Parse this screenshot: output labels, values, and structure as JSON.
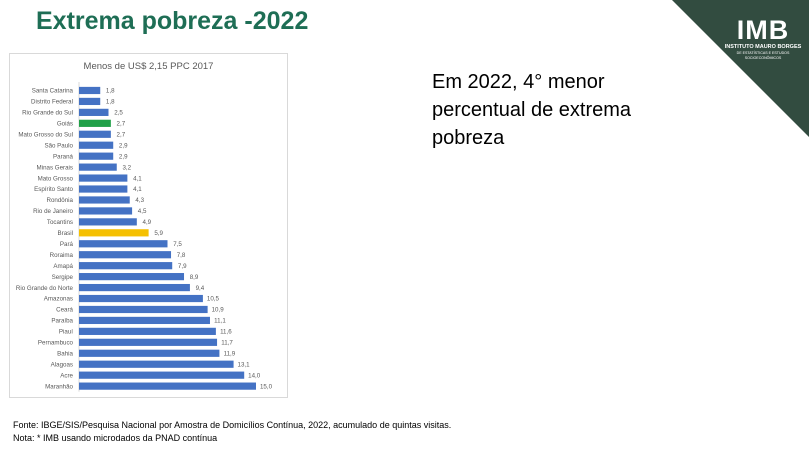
{
  "slide": {
    "title": "Extrema pobreza -2022",
    "note": "Em 2022, 4° menor percentual de extrema pobreza",
    "footer_source": "Fonte: IBGE/SIS/Pesquisa Nacional por Amostra de Domicílios Contínua, 2022, acumulado de quintas visitas.",
    "footer_note": "Nota: * IMB usando microdados da PNAD contínua"
  },
  "logo": {
    "mark": "IMB",
    "subtitle": "INSTITUTO MAURO BORGES",
    "tagline": "DE ESTATÍSTICAS E ESTUDOS SOCIOECONÔMICOS"
  },
  "colors": {
    "default_bar": "#4472c4",
    "highlight_goias": "#21a048",
    "highlight_brasil": "#f5c000",
    "title_green": "#1e6e55",
    "logo_bg": "#324c40"
  },
  "chart_data": {
    "type": "bar",
    "orientation": "horizontal",
    "title": "Menos de US$ 2,15 PPC 2017",
    "categories": [
      "Santa Catarina",
      "Distrito Federal",
      "Rio Grande do Sul",
      "Goiás",
      "Mato Grosso do Sul",
      "São Paulo",
      "Paraná",
      "Minas Gerais",
      "Mato Grosso",
      "Espírito Santo",
      "Rondônia",
      "Rio de Janeiro",
      "Tocantins",
      "Brasil",
      "Pará",
      "Roraima",
      "Amapá",
      "Sergipe",
      "Rio Grande do Norte",
      "Amazonas",
      "Ceará",
      "Paraíba",
      "Piauí",
      "Pernambuco",
      "Bahia",
      "Alagoas",
      "Acre",
      "Maranhão"
    ],
    "values": [
      1.8,
      1.8,
      2.5,
      2.7,
      2.7,
      2.9,
      2.9,
      3.2,
      4.1,
      4.1,
      4.3,
      4.5,
      4.9,
      5.9,
      7.5,
      7.8,
      7.9,
      8.9,
      9.4,
      10.5,
      10.9,
      11.1,
      11.6,
      11.7,
      11.9,
      13.1,
      14.0,
      15.0
    ],
    "value_labels": [
      "1,8",
      "1,8",
      "2,5",
      "2,7",
      "2,7",
      "2,9",
      "2,9",
      "3,2",
      "4,1",
      "4,1",
      "4,3",
      "4,5",
      "4,9",
      "5,9",
      "7,5",
      "7,8",
      "7,9",
      "8,9",
      "9,4",
      "10,5",
      "10,9",
      "11,1",
      "11,6",
      "11,7",
      "11,9",
      "13,1",
      "14,0",
      "15,0"
    ],
    "highlights": {
      "Goiás": "highlight_goias",
      "Brasil": "highlight_brasil"
    },
    "xlim": [
      0,
      15
    ],
    "grid": false,
    "legend": "none"
  }
}
